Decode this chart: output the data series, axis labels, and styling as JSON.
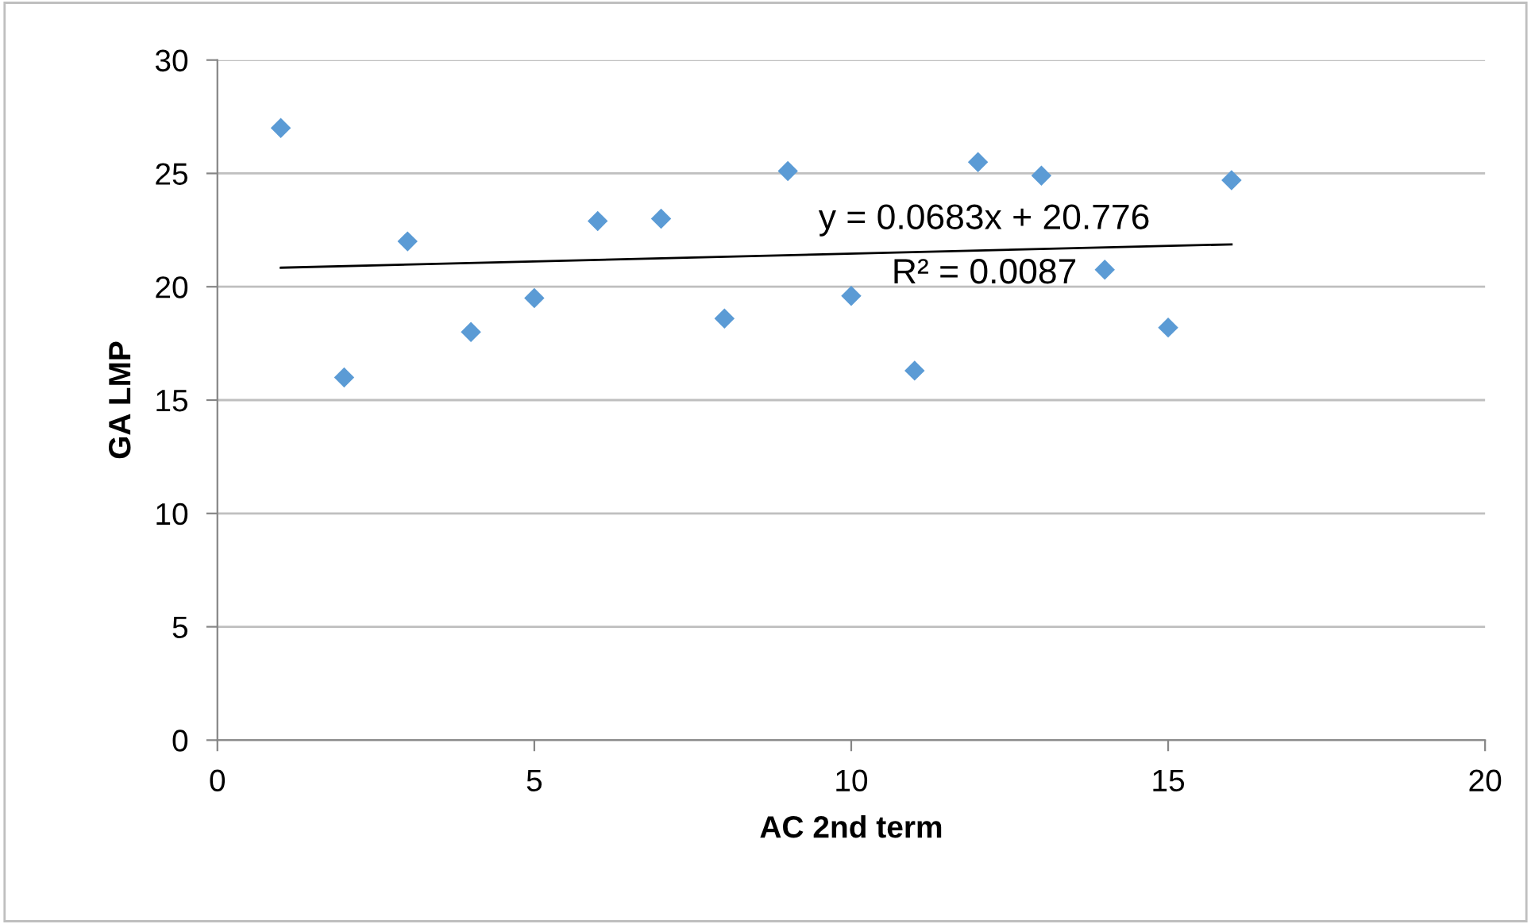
{
  "chart_data": {
    "type": "scatter",
    "xlabel": "AC 2nd term",
    "ylabel": "GA LMP",
    "xlim": [
      0,
      20
    ],
    "xticks": [
      0,
      5,
      10,
      15,
      20
    ],
    "ylim": [
      0,
      30
    ],
    "yticks": [
      0,
      5,
      10,
      15,
      20,
      25,
      30
    ],
    "grid": "y",
    "series": [
      {
        "marker": "diamond",
        "color": "#5b9bd5",
        "x": [
          1,
          2,
          3,
          4,
          5,
          6,
          7,
          8,
          9,
          10,
          11,
          12,
          13,
          14,
          15,
          16
        ],
        "values": [
          27.0,
          16.0,
          22.0,
          18.0,
          19.5,
          22.9,
          23.0,
          18.6,
          25.1,
          19.6,
          16.3,
          25.5,
          24.9,
          20.75,
          18.2,
          24.7
        ]
      },
      {
        "type": "line",
        "marker": "none",
        "color": "#000000",
        "x": [
          1,
          16
        ],
        "values": [
          20.84,
          21.87
        ]
      }
    ],
    "annotations": [
      "y = 0.0683x + 20.776",
      "R² = 0.0087"
    ]
  }
}
